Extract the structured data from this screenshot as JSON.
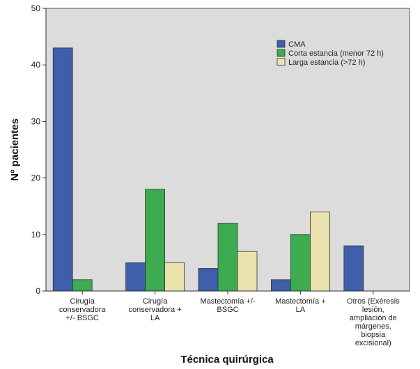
{
  "chart_data": {
    "type": "bar",
    "xlabel": "Técnica quirúrgica",
    "ylabel": "Nº pacientes",
    "ylim": [
      0,
      50
    ],
    "yticks": [
      0,
      10,
      20,
      30,
      40,
      50
    ],
    "grid": false,
    "legend_position": "top-right",
    "plot_background": "#dcdcdc",
    "categories": [
      [
        "Cirugía",
        "conservadora",
        "+/- BSGC"
      ],
      [
        "Cirugía",
        "conservadora +",
        "LA"
      ],
      [
        "Mastectomía +/-",
        "BSGC"
      ],
      [
        "Mastectomía +",
        "LA"
      ],
      [
        "Otros (Exéresis",
        "lesión,",
        "ampliación de",
        "márgenes,",
        "biopsia",
        "excisional)"
      ]
    ],
    "series": [
      {
        "name": "CMA",
        "color": "#3f5fab",
        "values": [
          43,
          5,
          4,
          2,
          8
        ]
      },
      {
        "name": "Corta estancia (menor 72 h)",
        "color": "#3dab4f",
        "values": [
          2,
          18,
          12,
          10,
          0
        ]
      },
      {
        "name": "Larga estancia (>72 h)",
        "color": "#ebe3ad",
        "values": [
          0,
          5,
          7,
          14,
          0
        ]
      }
    ]
  }
}
